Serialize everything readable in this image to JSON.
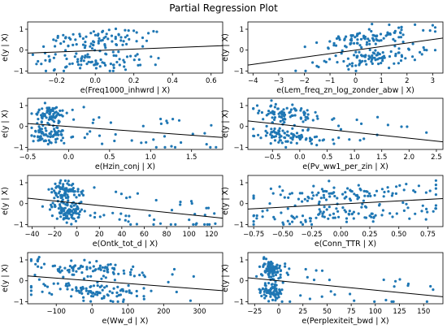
{
  "title": "Partial Regression Plot",
  "colors": {
    "points": "#1f77b4",
    "line": "#000000",
    "axis": "#000000"
  },
  "chart_data": [
    {
      "type": "scatter",
      "xlabel": "e(Freq1000_inhwrd | X)",
      "ylabel": "e(y | X)",
      "xlim": [
        -0.35,
        0.66
      ],
      "ylim": [
        -1.1,
        1.35
      ],
      "xticks": [
        -0.2,
        0.0,
        0.2,
        0.4,
        0.6
      ],
      "xtick_labels": [
        "−0.2",
        "0.0",
        "0.2",
        "0.4",
        "0.6"
      ],
      "yticks": [
        -1,
        0,
        1
      ],
      "ytick_labels": [
        "−1",
        "0",
        "1"
      ],
      "fit": {
        "slope": 0.35,
        "intercept": -0.02
      },
      "cloud": {
        "seed": 11,
        "n": 170,
        "shape": "linear",
        "xc": 0.0,
        "xsd": 0.13,
        "xmin": -0.33,
        "xmax": 0.64,
        "ysd": 0.55,
        "ymin": -1.0,
        "ymax": 1.25
      }
    },
    {
      "type": "scatter",
      "xlabel": "e(Lem_freq_zn_log_zonder_abw | X)",
      "ylabel": "e(y | X)",
      "xlim": [
        -4.2,
        3.4
      ],
      "ylim": [
        -1.1,
        1.35
      ],
      "xticks": [
        -4,
        -3,
        -2,
        -1,
        0,
        1,
        2,
        3
      ],
      "xtick_labels": [
        "−4",
        "−3",
        "−2",
        "−1",
        "0",
        "1",
        "2",
        "3"
      ],
      "yticks": [
        -1,
        0,
        1
      ],
      "ytick_labels": [
        "−1",
        "0",
        "1"
      ],
      "fit": {
        "slope": 0.17,
        "intercept": 0.0
      },
      "cloud": {
        "seed": 23,
        "n": 190,
        "shape": "linear",
        "xc": 0.6,
        "xsd": 1.0,
        "xmin": -3.9,
        "xmax": 3.1,
        "ysd": 0.45,
        "ymin": -1.0,
        "ymax": 1.25
      }
    },
    {
      "type": "scatter",
      "xlabel": "e(Hzin_conj | X)",
      "ylabel": "e(y | X)",
      "xlim": [
        -0.5,
        1.88
      ],
      "ylim": [
        -1.1,
        1.35
      ],
      "xticks": [
        -0.5,
        0.0,
        0.5,
        1.0,
        1.5
      ],
      "xtick_labels": [
        "−0.5",
        "0.0",
        "0.5",
        "1.0",
        "1.5"
      ],
      "yticks": [
        -1,
        0,
        1
      ],
      "ytick_labels": [
        "−1",
        "0",
        "1"
      ],
      "fit": {
        "slope": -0.28,
        "intercept": 0.0
      },
      "cloud": {
        "seed": 37,
        "n": 190,
        "shape": "clustered",
        "xc": -0.22,
        "xsd": 0.12,
        "xmin": -0.45,
        "xmax": 1.82,
        "ysd": 0.5,
        "ymin": -1.0,
        "ymax": 1.25,
        "tail": {
          "frac": 0.2,
          "xmin": 0.1,
          "xmax": 1.8
        }
      }
    },
    {
      "type": "scatter",
      "xlabel": "e(Pv_ww1_per_zin | X)",
      "ylabel": "e(y | X)",
      "xlim": [
        -0.95,
        2.62
      ],
      "ylim": [
        -1.1,
        1.35
      ],
      "xticks": [
        -0.5,
        0.0,
        0.5,
        1.0,
        1.5,
        2.0,
        2.5
      ],
      "xtick_labels": [
        "−0.5",
        "0.0",
        "0.5",
        "1.0",
        "1.5",
        "2.0",
        "2.5"
      ],
      "yticks": [
        -1,
        0,
        1
      ],
      "ytick_labels": [
        "−1",
        "0",
        "1"
      ],
      "fit": {
        "slope": -0.28,
        "intercept": 0.0
      },
      "cloud": {
        "seed": 41,
        "n": 190,
        "shape": "clustered",
        "xc": -0.2,
        "xsd": 0.35,
        "xmin": -0.85,
        "xmax": 2.55,
        "ysd": 0.5,
        "ymin": -1.0,
        "ymax": 1.25,
        "tail": {
          "frac": 0.08,
          "xmin": 0.6,
          "xmax": 2.5
        }
      }
    },
    {
      "type": "scatter",
      "xlabel": "e(Ontk_tot_d | X)",
      "ylabel": "e(y | X)",
      "xlim": [
        -44,
        130
      ],
      "ylim": [
        -1.1,
        1.35
      ],
      "xticks": [
        -40,
        -20,
        0,
        20,
        40,
        60,
        80,
        100,
        120
      ],
      "xtick_labels": [
        "−40",
        "−20",
        "0",
        "20",
        "40",
        "60",
        "80",
        "100",
        "120"
      ],
      "yticks": [
        -1,
        0,
        1
      ],
      "ytick_labels": [
        "−1",
        "0",
        "1"
      ],
      "fit": {
        "slope": -0.0055,
        "intercept": 0.02
      },
      "cloud": {
        "seed": 53,
        "n": 220,
        "shape": "clustered",
        "xc": -10,
        "xsd": 7,
        "xmin": -40,
        "xmax": 125,
        "ysd": 0.5,
        "ymin": -1.0,
        "ymax": 1.25,
        "tail": {
          "frac": 0.25,
          "xmin": 0,
          "xmax": 125
        }
      }
    },
    {
      "type": "scatter",
      "xlabel": "e(Conn_TTR | X)",
      "ylabel": "e(y | X)",
      "xlim": [
        -0.8,
        0.88
      ],
      "ylim": [
        -1.1,
        1.35
      ],
      "xticks": [
        -0.75,
        -0.5,
        -0.25,
        0.0,
        0.25,
        0.5,
        0.75
      ],
      "xtick_labels": [
        "−0.75",
        "−0.50",
        "−0.25",
        "0.00",
        "0.25",
        "0.50",
        "0.75"
      ],
      "yticks": [
        -1,
        0,
        1
      ],
      "ytick_labels": [
        "−1",
        "0",
        "1"
      ],
      "fit": {
        "slope": 0.3,
        "intercept": -0.02
      },
      "cloud": {
        "seed": 67,
        "n": 200,
        "shape": "linear",
        "xc": 0.05,
        "xsd": 0.4,
        "xmin": -0.75,
        "xmax": 0.82,
        "ysd": 0.5,
        "ymin": -1.0,
        "ymax": 1.25
      }
    },
    {
      "type": "scatter",
      "xlabel": "e(Ww_d | X)",
      "ylabel": "e(y | X)",
      "xlim": [
        -180,
        365
      ],
      "ylim": [
        -1.1,
        1.35
      ],
      "xticks": [
        -100,
        0,
        100,
        200,
        300
      ],
      "xtick_labels": [
        "−100",
        "0",
        "100",
        "200",
        "300"
      ],
      "yticks": [
        -1,
        0,
        1
      ],
      "ytick_labels": [
        "−1",
        "0",
        "1"
      ],
      "fit": {
        "slope": -0.0013,
        "intercept": 0.0
      },
      "cloud": {
        "seed": 79,
        "n": 200,
        "shape": "linear",
        "xc": 0,
        "xsd": 90,
        "xmin": -170,
        "xmax": 350,
        "ysd": 0.5,
        "ymin": -1.0,
        "ymax": 1.25
      }
    },
    {
      "type": "scatter",
      "xlabel": "e(Perplexiteit_bwd | X)",
      "ylabel": "e(y | X)",
      "xlim": [
        -32,
        170
      ],
      "ylim": [
        -1.1,
        1.35
      ],
      "xticks": [
        -25,
        0,
        25,
        50,
        75,
        100,
        125,
        150
      ],
      "xtick_labels": [
        "−25",
        "0",
        "25",
        "50",
        "75",
        "100",
        "125",
        "150"
      ],
      "yticks": [
        -1,
        0,
        1
      ],
      "ytick_labels": [
        "−1",
        "0",
        "1"
      ],
      "fit": {
        "slope": -0.0045,
        "intercept": 0.0
      },
      "cloud": {
        "seed": 97,
        "n": 210,
        "shape": "clustered",
        "xc": -8,
        "xsd": 6,
        "xmin": -28,
        "xmax": 165,
        "ysd": 0.5,
        "ymin": -1.0,
        "ymax": 1.25,
        "tail": {
          "frac": 0.12,
          "xmin": 0,
          "xmax": 165
        }
      }
    }
  ]
}
